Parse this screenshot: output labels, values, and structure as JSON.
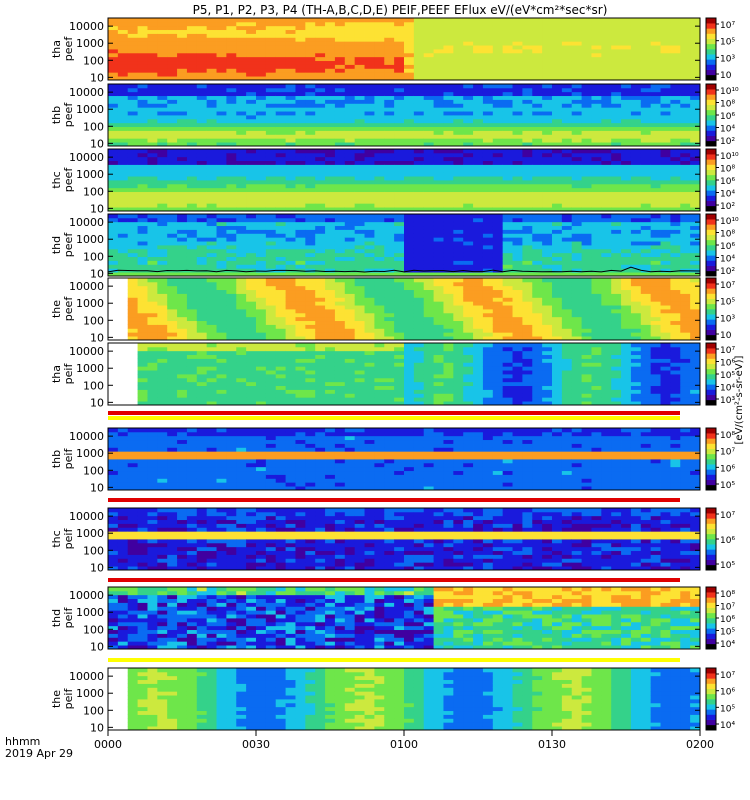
{
  "chart_data": {
    "type": "heatmap",
    "title": "P5, P1, P2, P3, P4 (TH-A,B,C,D,E) PEIF,PEEF EFlux eV/(eV*cm²*sec*sr)",
    "colorbar_label": "[eV/(cm²-s-sr-eV)]",
    "time_axis": {
      "label_line1": "hhmm",
      "label_line2": "2019 Apr 29",
      "start": "0000",
      "end": "0200",
      "ticks": [
        "0000",
        "0030",
        "0100",
        "0130",
        "0200"
      ]
    },
    "y_axis": {
      "scale": "log",
      "range_eV": [
        7,
        30000
      ],
      "ticks": [
        "10",
        "100",
        "1000",
        "10000"
      ]
    },
    "colorscale": [
      "#000000",
      "#4000a0",
      "#1a1adc",
      "#0a6bf2",
      "#18c4e8",
      "#34d28a",
      "#6ee64a",
      "#cce93e",
      "#fde233",
      "#fb9d21",
      "#f1321b",
      "#a00000"
    ],
    "panels": [
      {
        "probe": "tha",
        "species": "peef",
        "cbar_ticks": [
          "10",
          "10³",
          "10⁵",
          "10⁷"
        ],
        "segments": [
          [
            0,
            0.5,
            "orange-hot"
          ],
          [
            0.5,
            0.515,
            "transition"
          ],
          [
            0.515,
            0.96,
            "yellow-mid"
          ],
          [
            0.96,
            1.0,
            "yellow-low"
          ]
        ]
      },
      {
        "probe": "thb",
        "species": "peef",
        "cbar_ticks": [
          "10²",
          "10⁴",
          "10⁶",
          "10⁸",
          "10¹⁰"
        ],
        "segments": [
          [
            0,
            1.0,
            "banded-blue-green"
          ]
        ]
      },
      {
        "probe": "thc",
        "species": "peef",
        "cbar_ticks": [
          "10²",
          "10⁴",
          "10⁶",
          "10⁸",
          "10¹⁰"
        ],
        "segments": [
          [
            0,
            1.0,
            "banded-purple-green"
          ]
        ]
      },
      {
        "probe": "thd",
        "species": "peef",
        "cbar_ticks": [
          "10²",
          "10⁴",
          "10⁶",
          "10⁸",
          "10¹⁰"
        ],
        "segments": [
          [
            0,
            0.5,
            "cyan-flux"
          ],
          [
            0.5,
            0.67,
            "quiet-purple"
          ],
          [
            0.67,
            1.0,
            "cyan-flux"
          ]
        ],
        "overlay_line": "spacecraft potential"
      },
      {
        "probe": "the",
        "species": "peef",
        "cbar_ticks": [
          "10",
          "10³",
          "10⁵",
          "10⁷"
        ],
        "segments": [
          [
            0,
            0.04,
            "none"
          ],
          [
            0.04,
            1.0,
            "blocky-warm"
          ]
        ]
      },
      {
        "probe": "tha",
        "species": "peif",
        "cbar_ticks": [
          "10³",
          "10⁴",
          "10⁵",
          "10⁶",
          "10⁷"
        ],
        "segments": [
          [
            0,
            0.05,
            "none"
          ],
          [
            0.05,
            0.5,
            "green-cool"
          ],
          [
            0.5,
            1.0,
            "ion-cool"
          ]
        ]
      },
      {
        "probe": "thb",
        "species": "peif",
        "cbar_ticks": [
          "10⁵",
          "10⁶",
          "10⁷",
          "10⁸"
        ],
        "segments": [
          [
            0,
            1.0,
            "ion-bands"
          ]
        ]
      },
      {
        "probe": "thc",
        "species": "peif",
        "cbar_ticks": [
          "10⁵",
          "10⁶",
          "10⁷"
        ],
        "segments": [
          [
            0,
            1.0,
            "ion-bands-noisy"
          ]
        ]
      },
      {
        "probe": "thd",
        "species": "peif",
        "cbar_ticks": [
          "10⁴",
          "10⁵",
          "10⁶",
          "10⁷",
          "10⁸"
        ],
        "segments": [
          [
            0,
            0.55,
            "noisy-dark"
          ],
          [
            0.55,
            1.0,
            "hot-upper"
          ]
        ]
      },
      {
        "probe": "the",
        "species": "peif",
        "cbar_ticks": [
          "10⁴",
          "10⁵",
          "10⁶",
          "10⁷"
        ],
        "segments": [
          [
            0,
            0.04,
            "none"
          ],
          [
            0.04,
            1.0,
            "blocky-ion"
          ]
        ]
      }
    ]
  }
}
